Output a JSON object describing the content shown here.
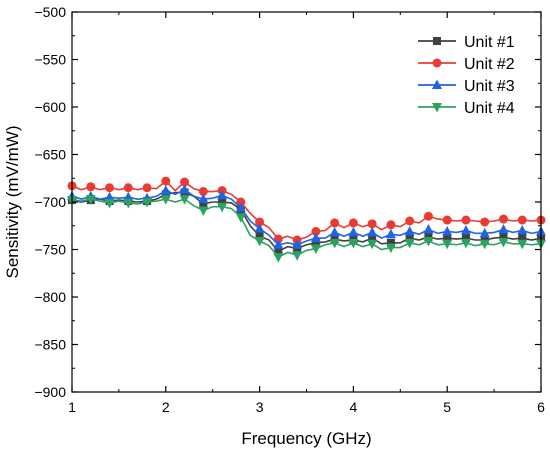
{
  "chart_data": {
    "type": "line",
    "xlabel": "Frequency (GHz)",
    "ylabel": "Sensitivity (mV/mW)",
    "xlim": [
      1,
      6
    ],
    "ylim": [
      -900,
      -500
    ],
    "xticks": [
      1,
      2,
      3,
      4,
      5,
      6
    ],
    "yticks": [
      -900,
      -850,
      -800,
      -750,
      -700,
      -650,
      -600,
      -550,
      -500
    ],
    "grid": false,
    "legend_position": "top-right",
    "series": [
      {
        "name": "Unit #1",
        "color": "#404040",
        "marker": "square",
        "x": [
          1.0,
          1.1,
          1.2,
          1.3,
          1.4,
          1.5,
          1.6,
          1.7,
          1.8,
          1.9,
          2.0,
          2.1,
          2.2,
          2.3,
          2.4,
          2.5,
          2.6,
          2.7,
          2.8,
          2.9,
          3.0,
          3.1,
          3.2,
          3.3,
          3.4,
          3.5,
          3.6,
          3.7,
          3.8,
          3.9,
          4.0,
          4.1,
          4.2,
          4.3,
          4.4,
          4.5,
          4.6,
          4.7,
          4.8,
          4.9,
          5.0,
          5.1,
          5.2,
          5.3,
          5.4,
          5.5,
          5.6,
          5.7,
          5.8,
          5.9,
          6.0
        ],
        "y": [
          -698,
          -700,
          -698,
          -697,
          -699,
          -698,
          -699,
          -700,
          -699,
          -697,
          -692,
          -690,
          -690,
          -694,
          -702,
          -700,
          -700,
          -701,
          -708,
          -725,
          -736,
          -740,
          -752,
          -747,
          -749,
          -745,
          -743,
          -742,
          -739,
          -741,
          -740,
          -742,
          -738,
          -744,
          -743,
          -743,
          -738,
          -740,
          -737,
          -739,
          -738,
          -739,
          -738,
          -740,
          -740,
          -738,
          -737,
          -739,
          -738,
          -740,
          -738
        ]
      },
      {
        "name": "Unit #2",
        "color": "#ea3b33",
        "marker": "circle",
        "x": [
          1.0,
          1.1,
          1.2,
          1.3,
          1.4,
          1.5,
          1.6,
          1.7,
          1.8,
          1.9,
          2.0,
          2.1,
          2.2,
          2.3,
          2.4,
          2.5,
          2.6,
          2.7,
          2.8,
          2.9,
          3.0,
          3.1,
          3.2,
          3.3,
          3.4,
          3.5,
          3.6,
          3.7,
          3.8,
          3.9,
          4.0,
          4.1,
          4.2,
          4.3,
          4.4,
          4.5,
          4.6,
          4.7,
          4.8,
          4.9,
          5.0,
          5.1,
          5.2,
          5.3,
          5.4,
          5.5,
          5.6,
          5.7,
          5.8,
          5.9,
          6.0
        ],
        "y": [
          -683,
          -687,
          -684,
          -687,
          -685,
          -687,
          -685,
          -687,
          -685,
          -686,
          -678,
          -688,
          -679,
          -686,
          -689,
          -689,
          -688,
          -692,
          -700,
          -712,
          -721,
          -727,
          -739,
          -736,
          -740,
          -737,
          -731,
          -730,
          -722,
          -727,
          -722,
          -726,
          -723,
          -729,
          -724,
          -726,
          -720,
          -722,
          -715,
          -718,
          -719,
          -720,
          -719,
          -720,
          -721,
          -720,
          -718,
          -720,
          -719,
          -720,
          -719
        ]
      },
      {
        "name": "Unit #3",
        "color": "#1f63e6",
        "marker": "triangle-up",
        "x": [
          1.0,
          1.1,
          1.2,
          1.3,
          1.4,
          1.5,
          1.6,
          1.7,
          1.8,
          1.9,
          2.0,
          2.1,
          2.2,
          2.3,
          2.4,
          2.5,
          2.6,
          2.7,
          2.8,
          2.9,
          3.0,
          3.1,
          3.2,
          3.3,
          3.4,
          3.5,
          3.6,
          3.7,
          3.8,
          3.9,
          4.0,
          4.1,
          4.2,
          4.3,
          4.4,
          4.5,
          4.6,
          4.7,
          4.8,
          4.9,
          5.0,
          5.1,
          5.2,
          5.3,
          5.4,
          5.5,
          5.6,
          5.7,
          5.8,
          5.9,
          6.0
        ],
        "y": [
          -694,
          -697,
          -694,
          -697,
          -695,
          -696,
          -695,
          -697,
          -696,
          -694,
          -688,
          -692,
          -687,
          -694,
          -697,
          -696,
          -693,
          -697,
          -706,
          -720,
          -728,
          -735,
          -745,
          -743,
          -745,
          -741,
          -738,
          -738,
          -732,
          -736,
          -732,
          -736,
          -732,
          -738,
          -734,
          -735,
          -731,
          -734,
          -729,
          -733,
          -731,
          -732,
          -730,
          -733,
          -733,
          -732,
          -729,
          -732,
          -730,
          -733,
          -731
        ]
      },
      {
        "name": "Unit #4",
        "color": "#2ca25f",
        "marker": "triangle-down",
        "x": [
          1.0,
          1.1,
          1.2,
          1.3,
          1.4,
          1.5,
          1.6,
          1.7,
          1.8,
          1.9,
          2.0,
          2.1,
          2.2,
          2.3,
          2.4,
          2.5,
          2.6,
          2.7,
          2.8,
          2.9,
          3.0,
          3.1,
          3.2,
          3.3,
          3.4,
          3.5,
          3.6,
          3.7,
          3.8,
          3.9,
          4.0,
          4.1,
          4.2,
          4.3,
          4.4,
          4.5,
          4.6,
          4.7,
          4.8,
          4.9,
          5.0,
          5.1,
          5.2,
          5.3,
          5.4,
          5.5,
          5.6,
          5.7,
          5.8,
          5.9,
          6.0
        ],
        "y": [
          -698,
          -699,
          -697,
          -699,
          -701,
          -699,
          -701,
          -702,
          -700,
          -699,
          -697,
          -700,
          -697,
          -704,
          -709,
          -705,
          -705,
          -707,
          -716,
          -735,
          -741,
          -746,
          -758,
          -753,
          -756,
          -751,
          -749,
          -745,
          -743,
          -747,
          -743,
          -747,
          -744,
          -750,
          -748,
          -748,
          -743,
          -745,
          -741,
          -745,
          -744,
          -745,
          -743,
          -746,
          -744,
          -745,
          -742,
          -744,
          -744,
          -745,
          -744
        ]
      }
    ]
  }
}
